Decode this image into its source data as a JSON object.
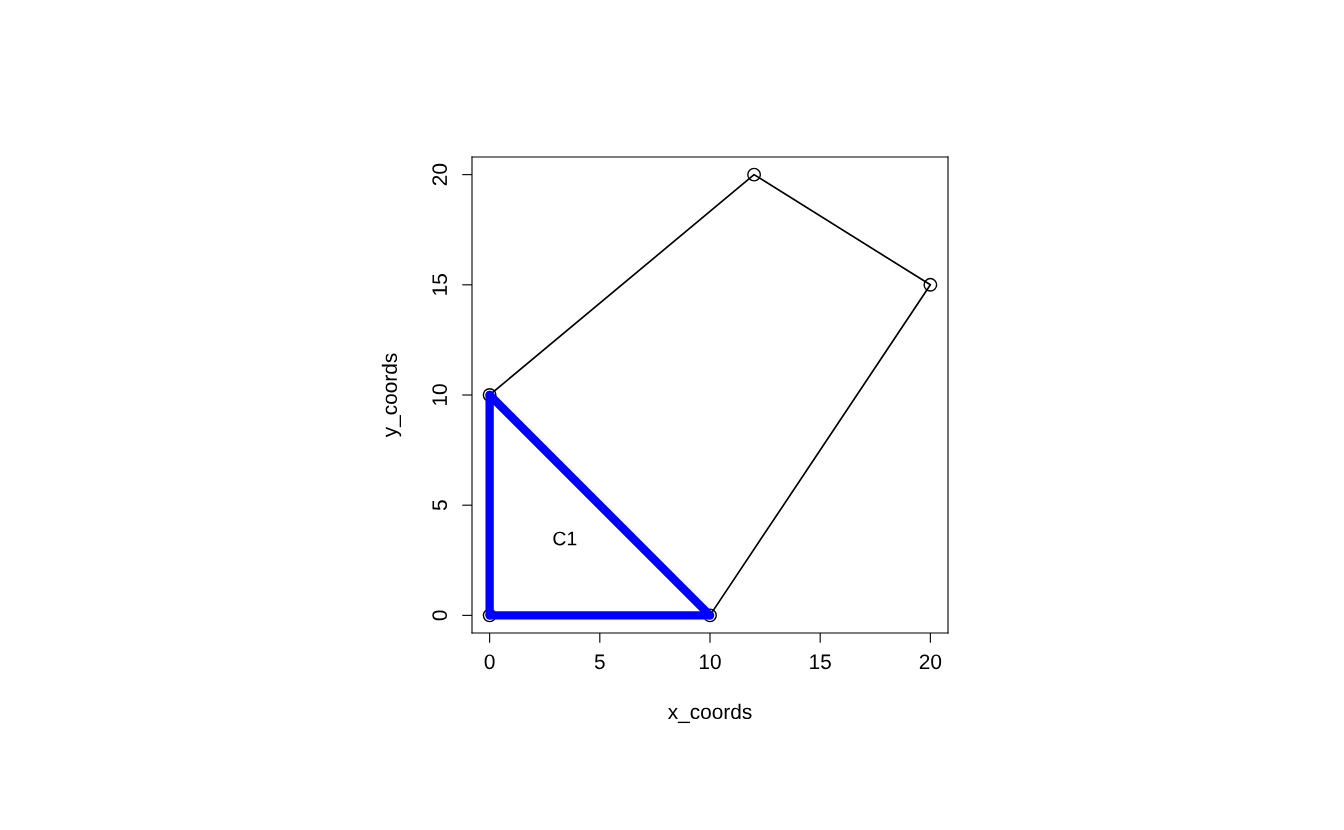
{
  "chart_data": {
    "type": "line",
    "xlabel": "x_coords",
    "ylabel": "y_coords",
    "series": [
      {
        "color": "#000000",
        "marker": "circle",
        "x": [
          0,
          10,
          20,
          12,
          0
        ],
        "values": [
          0,
          0,
          15,
          20,
          10
        ]
      },
      {
        "color": "#0000ff",
        "marker": "none",
        "x": [
          0,
          10
        ],
        "values": [
          0,
          0
        ]
      },
      {
        "color": "#0000ff",
        "marker": "none",
        "x": [
          0,
          10
        ],
        "values": [
          10,
          0
        ]
      },
      {
        "color": "#0000ff",
        "marker": "none",
        "x": [
          0,
          0
        ],
        "values": [
          0,
          10
        ]
      }
    ],
    "annotations": [
      "C1"
    ],
    "xlim": [
      -0.8,
      20.8
    ],
    "ylim": [
      -0.8,
      20.8
    ],
    "xticks": [
      0,
      5,
      10,
      15,
      20
    ],
    "yticks": [
      0,
      5,
      10,
      15,
      20
    ],
    "grid": false,
    "legend": false
  }
}
